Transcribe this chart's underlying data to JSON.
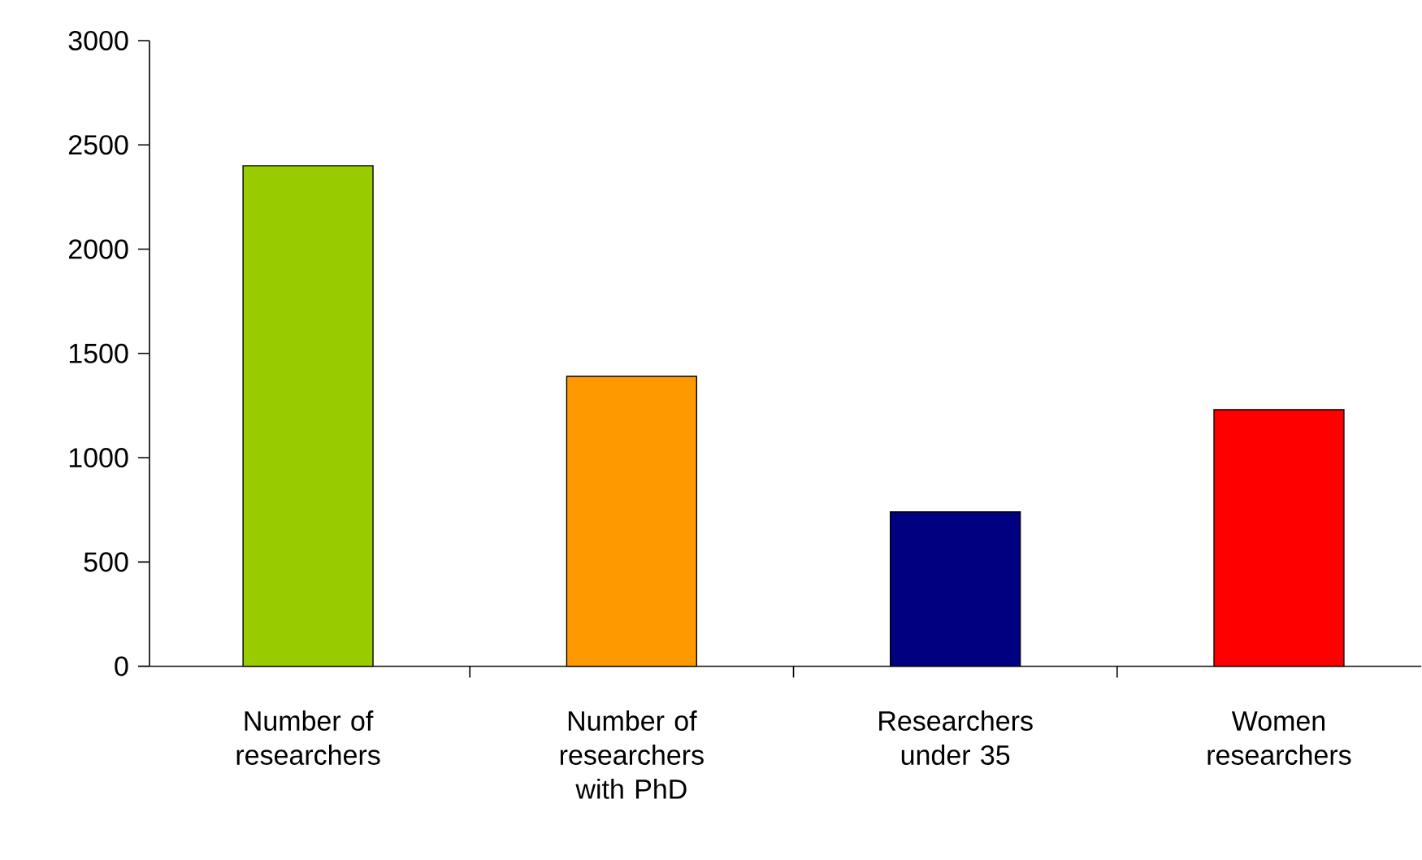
{
  "chart_data": {
    "type": "bar",
    "categories": [
      "Number of researchers",
      "Number of researchers with PhD",
      "Researchers under 35",
      "Women researchers"
    ],
    "values": [
      2400,
      1390,
      740,
      1230
    ],
    "colors": [
      "#99cc00",
      "#ff9900",
      "#000080",
      "#ff0000"
    ],
    "ylim": [
      0,
      3000
    ],
    "yticks": [
      0,
      500,
      1000,
      1500,
      2000,
      2500,
      3000
    ],
    "grid": false
  }
}
